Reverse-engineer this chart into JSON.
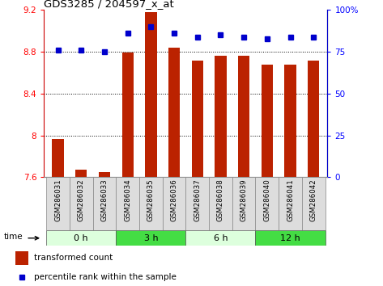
{
  "title": "GDS3285 / 204597_x_at",
  "samples": [
    "GSM286031",
    "GSM286032",
    "GSM286033",
    "GSM286034",
    "GSM286035",
    "GSM286036",
    "GSM286037",
    "GSM286038",
    "GSM286039",
    "GSM286040",
    "GSM286041",
    "GSM286042"
  ],
  "bar_values": [
    7.97,
    7.67,
    7.65,
    8.79,
    9.18,
    8.84,
    8.72,
    8.76,
    8.76,
    8.68,
    8.68,
    8.72
  ],
  "percentile_values": [
    76,
    76,
    75,
    86,
    90,
    86,
    84,
    85,
    84,
    83,
    84,
    84
  ],
  "ylim_left": [
    7.6,
    9.2
  ],
  "ylim_right": [
    0,
    100
  ],
  "yticks_left": [
    7.6,
    8.0,
    8.4,
    8.8,
    9.2
  ],
  "ytick_labels_left": [
    "7.6",
    "8",
    "8.4",
    "8.8",
    "9.2"
  ],
  "yticks_right": [
    0,
    25,
    50,
    75,
    100
  ],
  "ytick_labels_right": [
    "0",
    "25",
    "50",
    "75",
    "100%"
  ],
  "bar_color": "#bb2200",
  "dot_color": "#0000cc",
  "groups": [
    {
      "label": "0 h",
      "start": 0,
      "end": 3,
      "color": "#ddffdd"
    },
    {
      "label": "3 h",
      "start": 3,
      "end": 6,
      "color": "#44dd44"
    },
    {
      "label": "6 h",
      "start": 6,
      "end": 9,
      "color": "#ddffdd"
    },
    {
      "label": "12 h",
      "start": 9,
      "end": 12,
      "color": "#44dd44"
    }
  ],
  "time_label": "time",
  "legend_bar_label": "transformed count",
  "legend_dot_label": "percentile rank within the sample",
  "bar_bottom": 7.6,
  "grid_yticks": [
    8.0,
    8.4,
    8.8
  ],
  "sample_cell_color": "#dddddd",
  "sample_cell_edge": "#888888",
  "left_spine_color": "#cc0000",
  "right_spine_color": "#0000cc"
}
